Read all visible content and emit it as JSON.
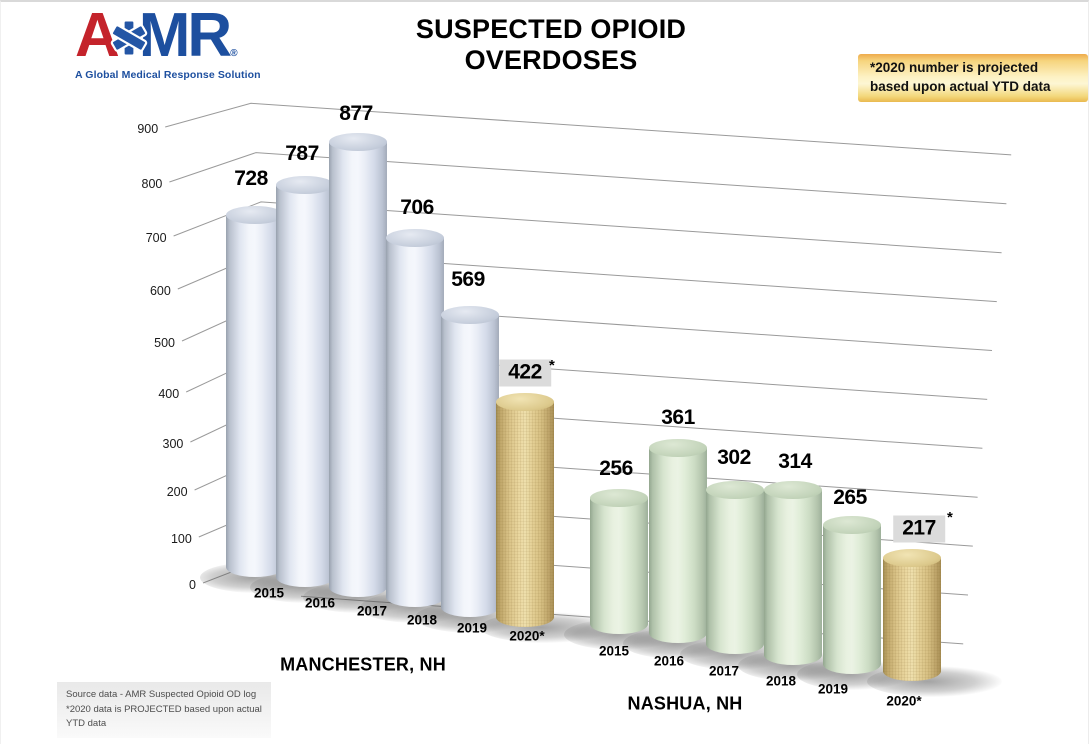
{
  "header": {
    "logo": {
      "a": "A",
      "mr": "MR",
      "registered": "®",
      "tagline": "A Global Medical Response Solution",
      "red": "#c4232b",
      "blue": "#1d4f9f"
    },
    "title": "SUSPECTED OPIOID OVERDOSES",
    "note": {
      "line1": "*2020 number is projected",
      "line2": "based upon actual YTD data"
    }
  },
  "chart_data": {
    "type": "bar",
    "subtype": "3d-cylinder",
    "title": "SUSPECTED OPIOID OVERDOSES",
    "ylim": [
      0,
      900
    ],
    "yticks": [
      0,
      100,
      200,
      300,
      400,
      500,
      600,
      700,
      800,
      900
    ],
    "grid": true,
    "groups": [
      {
        "name": "MANCHESTER, NH",
        "categories": [
          "2015",
          "2016",
          "2017",
          "2018",
          "2019",
          "2020*"
        ],
        "values": [
          728,
          787,
          877,
          706,
          569,
          422
        ],
        "projected_index": 5,
        "bar_color": "#e9edf6"
      },
      {
        "name": "NASHUA, NH",
        "categories": [
          "2015",
          "2016",
          "2017",
          "2018",
          "2019",
          "2020*"
        ],
        "values": [
          256,
          361,
          302,
          314,
          265,
          217
        ],
        "projected_index": 5,
        "bar_color": "#e0edd8"
      }
    ],
    "projected_color": "#e4d096",
    "projected_marker": "*",
    "annotation": "*2020 number is projected based upon actual YTD data",
    "gridline_color": "#9a9a9a"
  },
  "footer": {
    "source_line1": "Source data - AMR Suspected Opioid OD log",
    "source_line2": "*2020 data is PROJECTED based upon actual YTD data"
  }
}
